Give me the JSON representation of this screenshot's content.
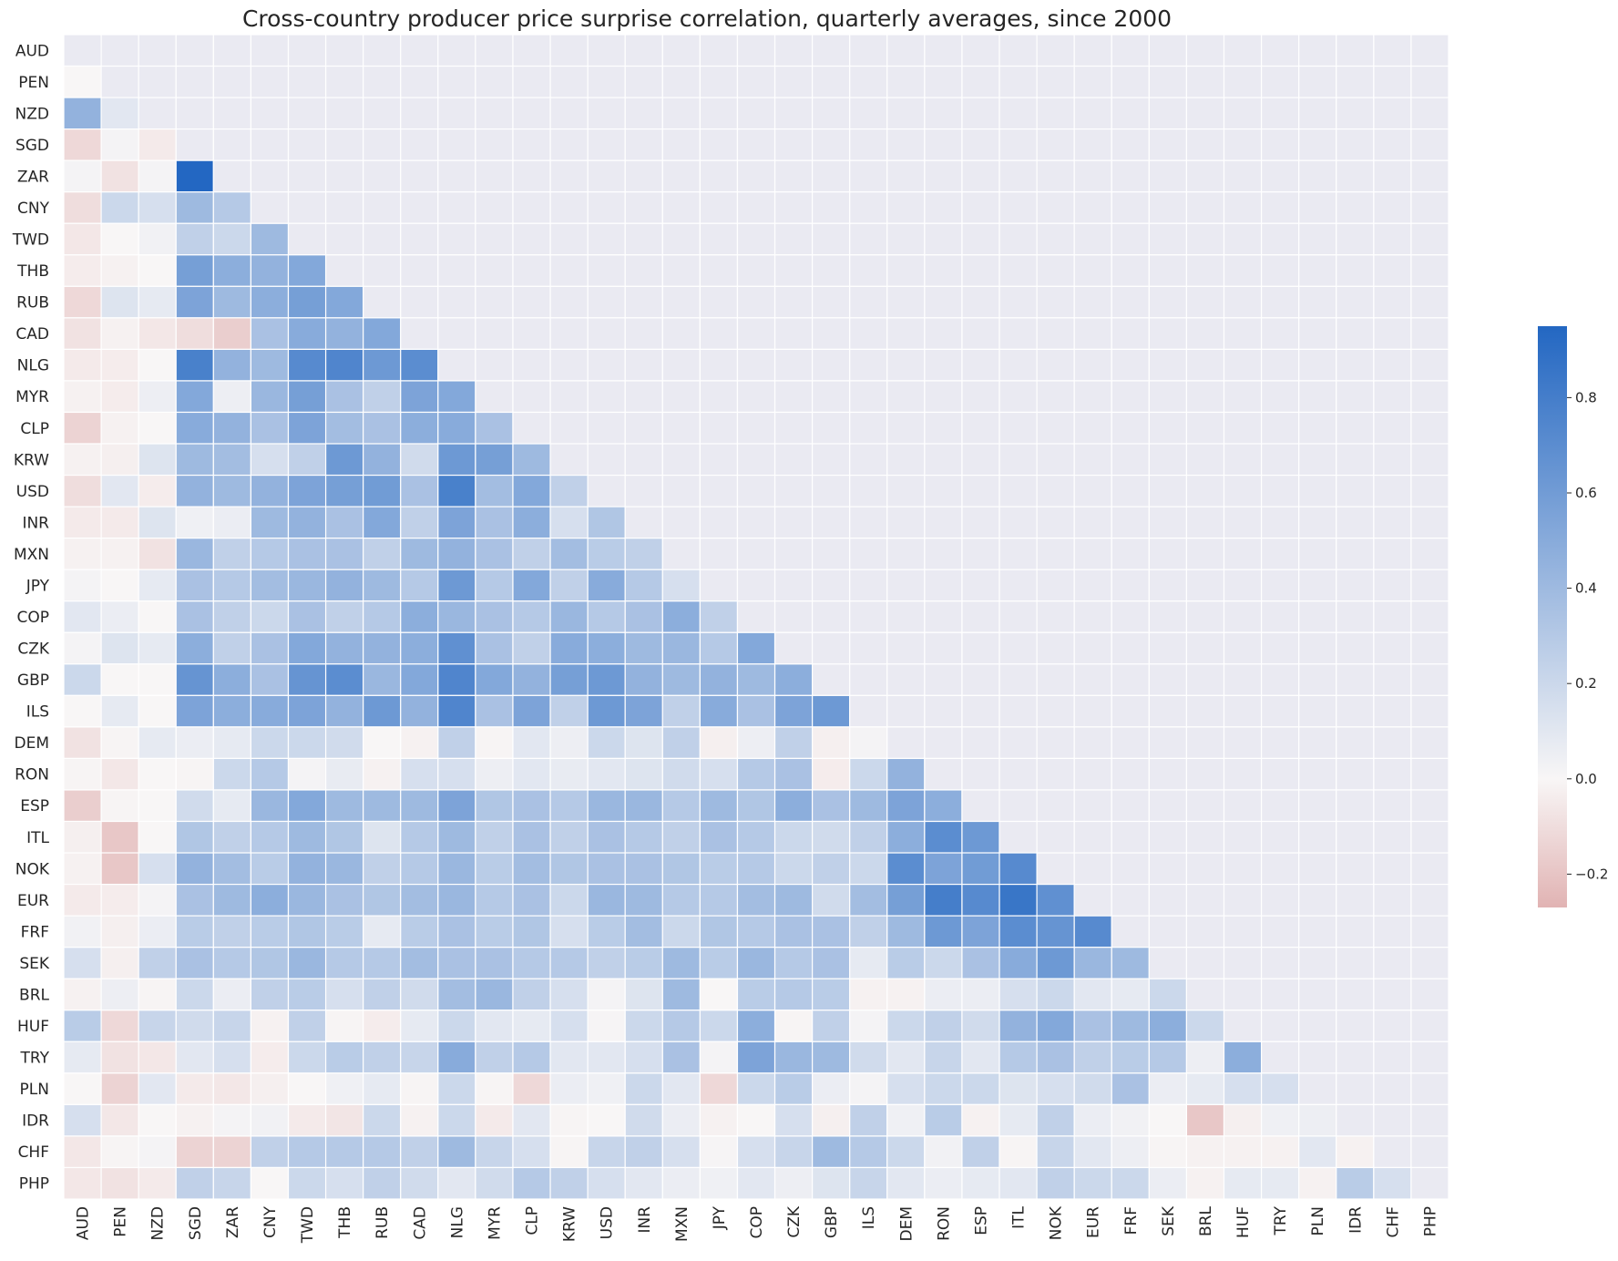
{
  "chart_data": {
    "type": "heatmap",
    "title": "Cross-country producer price surprise correlation, quarterly averages, since 2000",
    "labels": [
      "AUD",
      "PEN",
      "NZD",
      "SGD",
      "ZAR",
      "CNY",
      "TWD",
      "THB",
      "RUB",
      "CAD",
      "NLG",
      "MYR",
      "CLP",
      "KRW",
      "USD",
      "INR",
      "MXN",
      "JPY",
      "COP",
      "CZK",
      "GBP",
      "ILS",
      "DEM",
      "RON",
      "ESP",
      "ITL",
      "NOK",
      "EUR",
      "FRF",
      "SEK",
      "BRL",
      "HUF",
      "TRY",
      "PLN",
      "IDR",
      "CHF",
      "PHP"
    ],
    "mask": "lower-triangle",
    "colorbar": {
      "vmin": -0.27,
      "vmax": 0.95,
      "ticks": [
        -0.2,
        0.0,
        0.2,
        0.4,
        0.6,
        0.8
      ],
      "tick_labels": [
        "−0.2",
        "0.0",
        "0.2",
        "0.4",
        "0.6",
        "0.8"
      ]
    },
    "colors": {
      "negative": "#e1b3b3",
      "zero": "#f8f6f6",
      "positive": "#2367c2",
      "masked": "#eaeaf2",
      "grid": "#ffffff"
    },
    "values": [
      [],
      [
        0.0
      ],
      [
        0.45,
        0.1
      ],
      [
        -0.12,
        0.02,
        -0.05
      ],
      [
        0.02,
        -0.08,
        0.02,
        0.95
      ],
      [
        -0.1,
        0.2,
        0.15,
        0.4,
        0.3
      ],
      [
        -0.06,
        0.0,
        0.03,
        0.25,
        0.2,
        0.4
      ],
      [
        -0.04,
        -0.02,
        0.0,
        0.58,
        0.48,
        0.45,
        0.52
      ],
      [
        -0.12,
        0.12,
        0.08,
        0.55,
        0.4,
        0.48,
        0.58,
        0.52
      ],
      [
        -0.08,
        -0.02,
        -0.06,
        -0.1,
        -0.16,
        0.35,
        0.5,
        0.45,
        0.52
      ],
      [
        -0.05,
        -0.04,
        0.0,
        0.78,
        0.45,
        0.4,
        0.72,
        0.75,
        0.62,
        0.7
      ],
      [
        -0.02,
        -0.04,
        0.05,
        0.52,
        0.05,
        0.42,
        0.58,
        0.35,
        0.25,
        0.55,
        0.52
      ],
      [
        -0.14,
        -0.02,
        0.0,
        0.5,
        0.45,
        0.35,
        0.55,
        0.38,
        0.35,
        0.48,
        0.5,
        0.35
      ],
      [
        -0.02,
        -0.03,
        0.12,
        0.4,
        0.38,
        0.15,
        0.25,
        0.62,
        0.45,
        0.18,
        0.62,
        0.58,
        0.4
      ],
      [
        -0.1,
        0.1,
        -0.04,
        0.45,
        0.4,
        0.45,
        0.55,
        0.58,
        0.6,
        0.35,
        0.78,
        0.38,
        0.52,
        0.25
      ],
      [
        -0.05,
        -0.05,
        0.12,
        0.04,
        0.06,
        0.4,
        0.45,
        0.35,
        0.52,
        0.25,
        0.55,
        0.35,
        0.48,
        0.15,
        0.32
      ],
      [
        -0.02,
        -0.02,
        -0.08,
        0.42,
        0.25,
        0.3,
        0.35,
        0.35,
        0.25,
        0.4,
        0.45,
        0.35,
        0.25,
        0.38,
        0.28,
        0.25
      ],
      [
        0.02,
        0.0,
        0.08,
        0.35,
        0.3,
        0.38,
        0.42,
        0.45,
        0.4,
        0.3,
        0.62,
        0.3,
        0.52,
        0.25,
        0.5,
        0.3,
        0.15
      ],
      [
        0.1,
        0.06,
        0.0,
        0.35,
        0.25,
        0.2,
        0.35,
        0.25,
        0.3,
        0.48,
        0.42,
        0.35,
        0.3,
        0.42,
        0.3,
        0.35,
        0.48,
        0.25
      ],
      [
        0.02,
        0.12,
        0.08,
        0.48,
        0.25,
        0.35,
        0.52,
        0.45,
        0.45,
        0.48,
        0.68,
        0.35,
        0.25,
        0.5,
        0.48,
        0.4,
        0.42,
        0.3,
        0.52
      ],
      [
        0.2,
        0.0,
        0.0,
        0.65,
        0.48,
        0.35,
        0.65,
        0.7,
        0.42,
        0.52,
        0.75,
        0.52,
        0.45,
        0.58,
        0.62,
        0.45,
        0.4,
        0.45,
        0.4,
        0.48
      ],
      [
        0.0,
        0.08,
        0.0,
        0.55,
        0.48,
        0.5,
        0.55,
        0.45,
        0.62,
        0.45,
        0.75,
        0.35,
        0.55,
        0.25,
        0.62,
        0.55,
        0.25,
        0.5,
        0.35,
        0.55,
        0.62
      ],
      [
        -0.08,
        -0.01,
        0.08,
        0.06,
        0.08,
        0.2,
        0.2,
        0.18,
        0.0,
        -0.02,
        0.25,
        -0.01,
        0.1,
        0.05,
        0.2,
        0.12,
        0.25,
        -0.03,
        0.05,
        0.25,
        -0.03,
        0.02
      ],
      [
        -0.01,
        -0.06,
        0.0,
        -0.01,
        0.2,
        0.3,
        0.02,
        0.07,
        -0.02,
        0.15,
        0.15,
        0.05,
        0.1,
        0.07,
        0.1,
        0.12,
        0.18,
        0.15,
        0.3,
        0.35,
        -0.04,
        0.2,
        0.45
      ],
      [
        -0.16,
        -0.01,
        0.0,
        0.18,
        0.08,
        0.42,
        0.52,
        0.4,
        0.4,
        0.4,
        0.55,
        0.32,
        0.35,
        0.3,
        0.42,
        0.42,
        0.3,
        0.4,
        0.32,
        0.48,
        0.35,
        0.4,
        0.55,
        0.48
      ],
      [
        -0.03,
        -0.19,
        0.0,
        0.32,
        0.25,
        0.3,
        0.4,
        0.32,
        0.12,
        0.3,
        0.4,
        0.25,
        0.35,
        0.25,
        0.35,
        0.3,
        0.25,
        0.35,
        0.3,
        0.2,
        0.18,
        0.25,
        0.48,
        0.7,
        0.62
      ],
      [
        -0.02,
        -0.19,
        0.15,
        0.45,
        0.38,
        0.28,
        0.45,
        0.42,
        0.25,
        0.3,
        0.42,
        0.28,
        0.38,
        0.32,
        0.35,
        0.35,
        0.32,
        0.28,
        0.3,
        0.2,
        0.25,
        0.2,
        0.7,
        0.55,
        0.6,
        0.72
      ],
      [
        -0.05,
        -0.04,
        0.02,
        0.35,
        0.4,
        0.48,
        0.42,
        0.35,
        0.32,
        0.38,
        0.42,
        0.3,
        0.35,
        0.2,
        0.42,
        0.4,
        0.3,
        0.3,
        0.38,
        0.4,
        0.18,
        0.38,
        0.58,
        0.8,
        0.72,
        0.85,
        0.68
      ],
      [
        0.03,
        -0.03,
        0.06,
        0.28,
        0.25,
        0.28,
        0.32,
        0.28,
        0.08,
        0.28,
        0.35,
        0.28,
        0.32,
        0.15,
        0.28,
        0.38,
        0.2,
        0.32,
        0.3,
        0.35,
        0.35,
        0.25,
        0.4,
        0.62,
        0.55,
        0.7,
        0.65,
        0.72
      ],
      [
        0.15,
        -0.03,
        0.25,
        0.35,
        0.3,
        0.32,
        0.42,
        0.3,
        0.3,
        0.38,
        0.35,
        0.35,
        0.3,
        0.3,
        0.25,
        0.28,
        0.4,
        0.28,
        0.42,
        0.3,
        0.35,
        0.08,
        0.28,
        0.2,
        0.35,
        0.5,
        0.62,
        0.42,
        0.4
      ],
      [
        -0.02,
        0.05,
        -0.01,
        0.2,
        0.06,
        0.25,
        0.28,
        0.15,
        0.25,
        0.18,
        0.38,
        0.42,
        0.25,
        0.15,
        0.02,
        0.12,
        0.4,
        0.0,
        0.28,
        0.3,
        0.28,
        -0.02,
        -0.02,
        0.06,
        0.06,
        0.15,
        0.2,
        0.1,
        0.08,
        0.2
      ],
      [
        0.28,
        -0.12,
        0.22,
        0.18,
        0.22,
        -0.02,
        0.25,
        -0.01,
        -0.04,
        0.08,
        0.2,
        0.1,
        0.08,
        0.15,
        0.01,
        0.2,
        0.3,
        0.2,
        0.48,
        -0.01,
        0.25,
        0.02,
        0.2,
        0.25,
        0.18,
        0.45,
        0.52,
        0.35,
        0.4,
        0.48,
        0.2
      ],
      [
        0.08,
        -0.08,
        -0.06,
        0.1,
        0.15,
        -0.04,
        0.2,
        0.28,
        0.25,
        0.22,
        0.5,
        0.25,
        0.3,
        0.1,
        0.1,
        0.15,
        0.35,
        0.02,
        0.55,
        0.42,
        0.4,
        0.18,
        0.1,
        0.22,
        0.1,
        0.3,
        0.35,
        0.25,
        0.28,
        0.3,
        0.05,
        0.48
      ],
      [
        0.0,
        -0.14,
        0.1,
        -0.05,
        -0.06,
        -0.03,
        0.0,
        0.04,
        0.08,
        -0.01,
        0.2,
        -0.01,
        -0.12,
        0.06,
        0.04,
        0.2,
        0.1,
        -0.12,
        0.2,
        0.28,
        0.06,
        0.02,
        0.15,
        0.2,
        0.2,
        0.12,
        0.15,
        0.18,
        0.35,
        0.06,
        0.08,
        0.15,
        0.15
      ],
      [
        0.15,
        -0.06,
        0.0,
        -0.02,
        0.02,
        0.03,
        -0.05,
        -0.07,
        0.2,
        -0.02,
        0.2,
        -0.05,
        0.1,
        -0.01,
        0.0,
        0.18,
        0.06,
        -0.02,
        0.0,
        0.15,
        -0.03,
        0.25,
        0.04,
        0.28,
        -0.02,
        0.08,
        0.25,
        0.06,
        0.03,
        0.0,
        -0.19,
        -0.03,
        0.04,
        0.05
      ],
      [
        -0.06,
        -0.01,
        0.02,
        -0.14,
        -0.14,
        0.25,
        0.3,
        0.3,
        0.3,
        0.25,
        0.4,
        0.22,
        0.15,
        -0.01,
        0.22,
        0.25,
        0.15,
        0.01,
        0.15,
        0.22,
        0.4,
        0.3,
        0.2,
        0.03,
        0.25,
        -0.01,
        0.22,
        0.1,
        0.05,
        -0.01,
        -0.02,
        -0.02,
        -0.02,
        0.1,
        -0.02
      ],
      [
        -0.06,
        -0.08,
        -0.05,
        0.25,
        0.22,
        0.0,
        0.2,
        0.15,
        0.25,
        0.18,
        0.1,
        0.18,
        0.3,
        0.25,
        0.15,
        0.1,
        0.06,
        0.04,
        0.1,
        0.05,
        0.12,
        0.22,
        0.1,
        0.06,
        0.08,
        0.1,
        0.25,
        0.2,
        0.2,
        0.06,
        -0.02,
        0.08,
        0.08,
        -0.02,
        0.28,
        0.15
      ]
    ]
  }
}
